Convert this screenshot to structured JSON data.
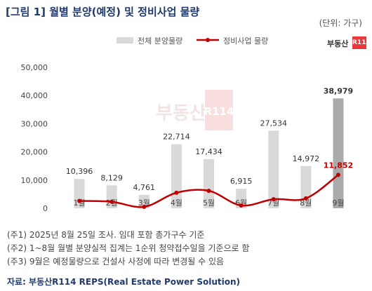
{
  "title": "[그림 1] 월별 분양(예정) 및 정비사업 물량",
  "unit": "(단위: 가구)",
  "logo": {
    "text": "부동산",
    "badge": "R114"
  },
  "watermark": "부동산",
  "watermark_badge": "R114",
  "colors": {
    "bar": "#d9d9d9",
    "bar_highlight": "#aaaaaa",
    "line": "#c00000",
    "title": "#1f3a6e"
  },
  "chart_data": {
    "type": "bar",
    "categories": [
      "1월",
      "2월",
      "3월",
      "4월",
      "5월",
      "6월",
      "7월",
      "8월",
      "9월"
    ],
    "series": [
      {
        "name": "전체 분양물량",
        "type": "bar",
        "values": [
          10396,
          8129,
          4761,
          22714,
          17434,
          6915,
          27534,
          14972,
          38979
        ],
        "labels": [
          "10,396",
          "8,129",
          "4,761",
          "22,714",
          "17,434",
          "6,915",
          "27,534",
          "14,972",
          "38,979"
        ]
      },
      {
        "name": "정비사업 물량",
        "type": "line",
        "values": [
          2600,
          2300,
          500,
          5500,
          6200,
          1000,
          3200,
          3500,
          11852
        ],
        "labels": [
          "",
          "",
          "",
          "",
          "",
          "",
          "",
          "",
          "11,852"
        ]
      }
    ],
    "ylim": [
      0,
      50000
    ],
    "yticks": [
      0,
      10000,
      20000,
      30000,
      40000,
      50000
    ],
    "ytick_labels": [
      "0",
      "10,000",
      "20,000",
      "30,000",
      "40,000",
      "50,000"
    ],
    "legend_position": "top-center",
    "grid": false
  },
  "notes": [
    "(주1) 2025년 8월 25일 조사. 임대 포함 총가구수 기준",
    "(주2) 1~8월 월별 분양실적 집계는 1순위 청약접수일을 기준으로 함",
    "(주3) 9월은 예정물량으로 건설사 사정에 따라 변경될 수 있음"
  ],
  "source": "자료: 부동산R114 REPS(Real Estate Power Solution)"
}
